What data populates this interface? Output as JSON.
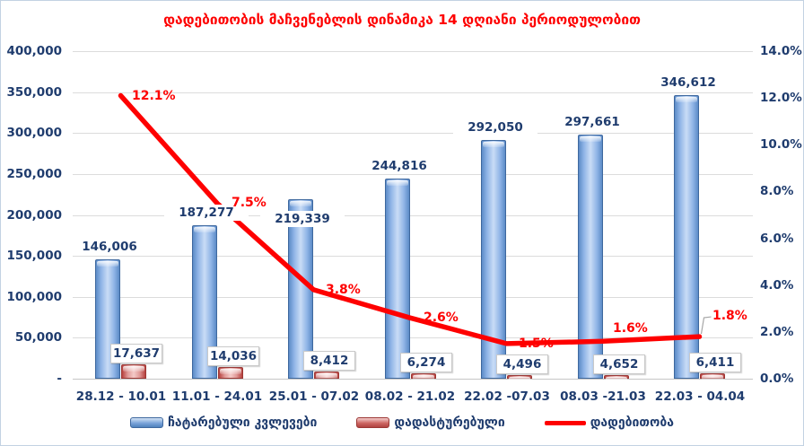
{
  "title": "დადებითობის მაჩვენებლის დინამიკა 14 დღიანი პერიოდულობით",
  "colors": {
    "title_red": "#fe0000",
    "line_red": "#fe0000",
    "bar_blue": "#7da7dc",
    "bar_red": "#d99694",
    "axis_text_navy": "#1f3c6e",
    "gridline_gray": "#dcdcdc",
    "chart_border": "#c3d2e2"
  },
  "chart_data": {
    "type": "bar",
    "subtype": "combo-bar-line-dual-axis",
    "title": "დადებითობის მაჩვენებლის დინამიკა 14 დღიანი პერიოდულობით",
    "categories": [
      "28.12 - 10.01",
      "11.01 - 24.01",
      "25.01 - 07.02",
      "08.02 - 21.02",
      "22.02 -07.03",
      "08.03 -21.03",
      "22.03 - 04.04"
    ],
    "series": [
      {
        "name": "ჩატარებული კვლევები",
        "type": "bar",
        "axis": "left",
        "color": "#7da7dc",
        "values": [
          146006,
          187277,
          219339,
          244816,
          292050,
          297661,
          346612
        ],
        "labels": [
          "146,006",
          "187,277",
          "219,339",
          "244,816",
          "292,050",
          "297,661",
          "346,612"
        ]
      },
      {
        "name": "დადასტურებული",
        "type": "bar",
        "axis": "left",
        "color": "#d99694",
        "values": [
          17637,
          14036,
          8412,
          6274,
          4496,
          4652,
          6411
        ],
        "labels": [
          "17,637",
          "14,036",
          "8,412",
          "6,274",
          "4,496",
          "4,652",
          "6,411"
        ]
      },
      {
        "name": "დადებითობა",
        "type": "line",
        "axis": "right",
        "color": "#fe0000",
        "values": [
          12.1,
          7.5,
          3.8,
          2.6,
          1.5,
          1.6,
          1.8
        ],
        "labels": [
          "12.1%",
          "7.5%",
          "3.8%",
          "2.6%",
          "1.5%",
          "1.6%",
          "1.8%"
        ]
      }
    ],
    "left_axis": {
      "min": 0,
      "max": 400000,
      "step": 50000,
      "ticks": [
        "-",
        "50,000",
        "100,000",
        "150,000",
        "200,000",
        "250,000",
        "300,000",
        "350,000",
        "400,000"
      ]
    },
    "right_axis": {
      "min": 0,
      "max": 14,
      "step": 2,
      "ticks": [
        "0.0%",
        "2.0%",
        "4.0%",
        "6.0%",
        "8.0%",
        "10.0%",
        "12.0%",
        "14.0%"
      ]
    },
    "grid": true,
    "legend_position": "bottom"
  },
  "legend": {
    "items": [
      {
        "label": "ჩატარებული კვლევები"
      },
      {
        "label": "დადასტურებული"
      },
      {
        "label": "დადებითობა"
      }
    ]
  }
}
